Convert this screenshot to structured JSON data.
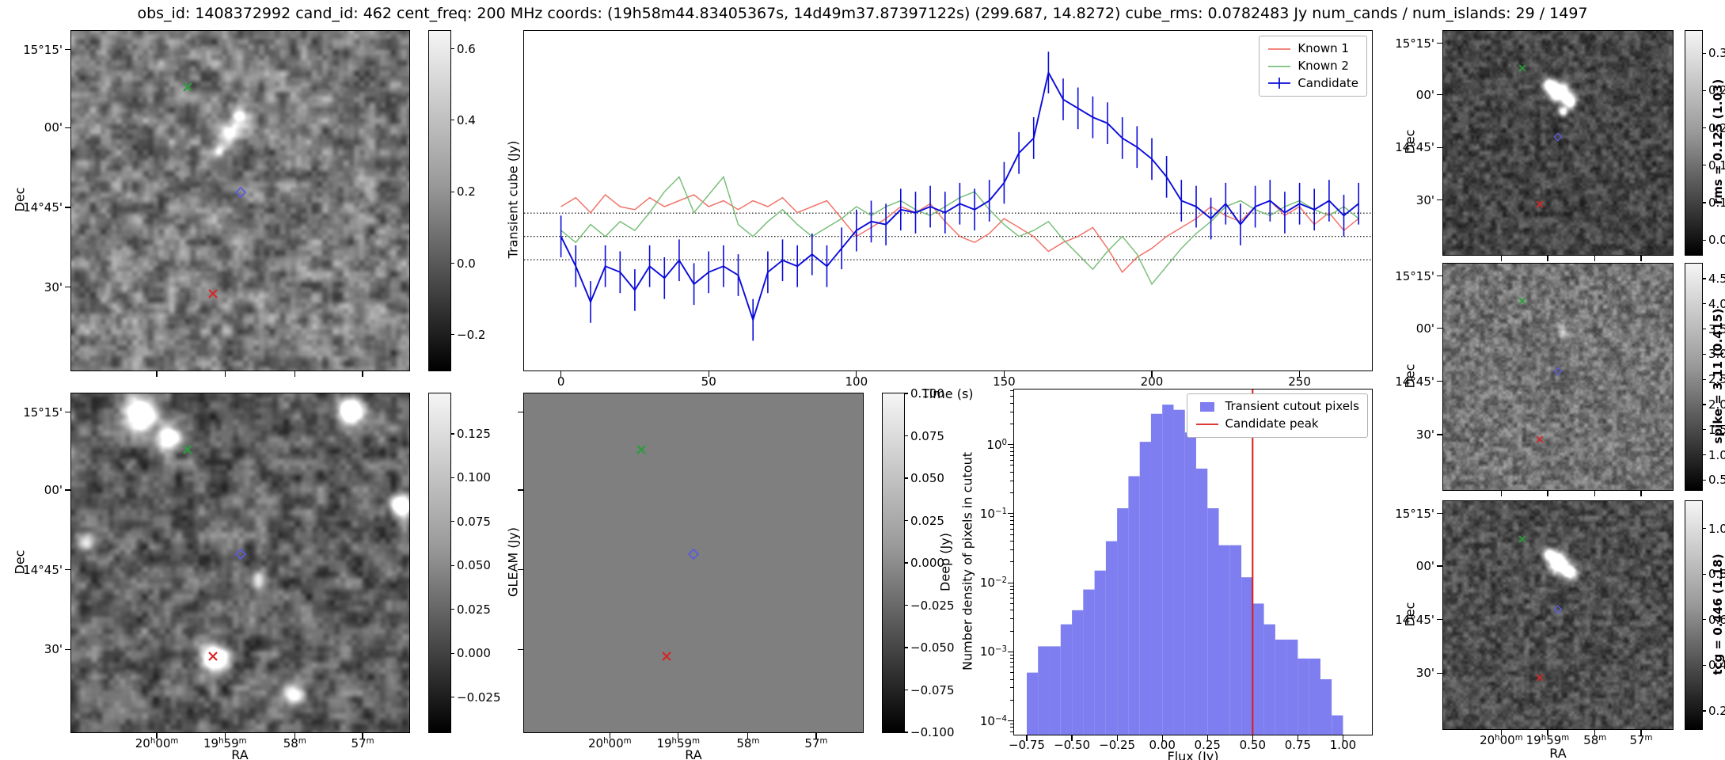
{
  "title": "obs_id: 1408372992 cand_id: 462 cent_freq: 200 MHz coords: (19h58m44.83405367s, 14d49m37.87397122s) (299.687, 14.8272) cube_rms: 0.0782483 Jy num_cands / num_islands: 29 / 1497",
  "axes": {
    "dec_label": "Dec",
    "ra_label": "RA",
    "dec_ticks": [
      {
        "label": "15°15'",
        "f": 0.055
      },
      {
        "label": "00'",
        "f": 0.285
      },
      {
        "label": "14°45'",
        "f": 0.52
      },
      {
        "label": "30'",
        "f": 0.755
      }
    ],
    "ra_ticks": [
      {
        "label": "20h00m",
        "f": 0.253
      },
      {
        "label": "19h59m",
        "f": 0.455
      },
      {
        "label": "58m",
        "f": 0.661
      },
      {
        "label": "57m",
        "f": 0.862
      }
    ]
  },
  "markers": {
    "green_x": {
      "fx": 0.345,
      "fy": 0.165
    },
    "red_x": {
      "fx": 0.42,
      "fy": 0.775
    },
    "candidate": {
      "fx": 0.5,
      "fy": 0.475
    },
    "green_color": "#2a9d3c",
    "red_color": "#d62728",
    "candidate_color": "#5b5bdc"
  },
  "colorbars": {
    "transient": {
      "label": "Transient cube (Jy)",
      "min": -0.3,
      "max": 0.65,
      "decimals": 1,
      "ticks": [
        0.6,
        0.4,
        0.2,
        0.0,
        -0.2
      ]
    },
    "gleam": {
      "label": "GLEAM (Jy)",
      "min": -0.045,
      "max": 0.148,
      "decimals": 3,
      "ticks": [
        0.125,
        0.1,
        0.075,
        0.05,
        0.025,
        0.0,
        -0.025
      ]
    },
    "deep": {
      "label": "Deep (Jy)",
      "min": -0.1,
      "max": 0.1,
      "decimals": 3,
      "ticks": [
        0.1,
        0.075,
        0.05,
        0.025,
        0.0,
        -0.025,
        -0.05,
        -0.075,
        -0.1
      ]
    },
    "rms": {
      "label": "rms = 0.125 (1.03)",
      "min": 0.03,
      "max": 0.33,
      "decimals": 2,
      "ticks": [
        0.3,
        0.25,
        0.2,
        0.15,
        0.1,
        0.05
      ]
    },
    "spike": {
      "label": "spike = 3.11 (0.415)",
      "min": 0.3,
      "max": 4.8,
      "decimals": 1,
      "ticks": [
        4.5,
        4.0,
        3.5,
        3.0,
        2.5,
        2.0,
        1.5,
        1.0,
        0.5
      ]
    },
    "tcg": {
      "label": "tcg = 0.446 (1.18)",
      "min": 0.12,
      "max": 1.12,
      "decimals": 1,
      "ticks": [
        1.0,
        0.8,
        0.6,
        0.4,
        0.2
      ]
    }
  },
  "chart_data": [
    {
      "type": "line",
      "name": "candidate-lightcurve",
      "xlabel": "Time (s)",
      "ylabel": "",
      "xlim": [
        -12.5,
        274.5
      ],
      "ylim": [
        -0.45,
        0.69
      ],
      "xticks": [
        0,
        50,
        100,
        150,
        200,
        250
      ],
      "hlines": [
        0.0782,
        0,
        -0.0782
      ],
      "legend_position": "top-right",
      "x": [
        0,
        5,
        10,
        15,
        20,
        25,
        30,
        35,
        40,
        45,
        50,
        55,
        60,
        65,
        70,
        75,
        80,
        85,
        90,
        95,
        100,
        105,
        110,
        115,
        120,
        125,
        130,
        135,
        140,
        145,
        150,
        155,
        160,
        165,
        170,
        175,
        180,
        185,
        190,
        195,
        200,
        205,
        210,
        215,
        220,
        225,
        230,
        235,
        240,
        245,
        250,
        255,
        260,
        265,
        270
      ],
      "series": [
        {
          "name": "Known 1",
          "color": "#f0766b",
          "values": [
            0.1,
            0.13,
            0.08,
            0.14,
            0.1,
            0.09,
            0.13,
            0.1,
            0.12,
            0.14,
            0.1,
            0.12,
            0.09,
            0.12,
            0.1,
            0.13,
            0.08,
            0.1,
            0.12,
            0.06,
            0.0,
            0.03,
            0.06,
            0.1,
            0.08,
            0.11,
            0.05,
            0.0,
            -0.02,
            0.01,
            0.06,
            0.03,
            0.0,
            -0.05,
            -0.02,
            0.0,
            0.03,
            -0.04,
            -0.12,
            -0.07,
            -0.04,
            0.0,
            0.03,
            0.06,
            0.1,
            0.07,
            0.05,
            0.1,
            0.12,
            0.07,
            0.1,
            0.04,
            0.08,
            0.02,
            0.06
          ]
        },
        {
          "name": "Known 2",
          "color": "#7abf7a",
          "values": [
            0.02,
            -0.02,
            0.04,
            0.0,
            0.05,
            0.02,
            0.08,
            0.15,
            0.2,
            0.08,
            0.14,
            0.2,
            0.04,
            0.0,
            0.05,
            0.09,
            0.04,
            0.0,
            0.03,
            0.06,
            0.1,
            0.07,
            0.1,
            0.12,
            0.09,
            0.07,
            0.1,
            0.13,
            0.15,
            0.09,
            0.04,
            0.0,
            0.02,
            0.05,
            -0.01,
            -0.06,
            -0.11,
            -0.05,
            0.0,
            -0.06,
            -0.16,
            -0.1,
            -0.04,
            0.01,
            0.05,
            0.1,
            0.12,
            0.09,
            0.07,
            0.1,
            0.12,
            0.09,
            0.07,
            0.1,
            0.06
          ]
        },
        {
          "name": "Candidate",
          "color": "#0b0bdb",
          "yerr": 0.07,
          "values": [
            0.0,
            -0.1,
            -0.22,
            -0.1,
            -0.12,
            -0.18,
            -0.1,
            -0.14,
            -0.08,
            -0.16,
            -0.12,
            -0.1,
            -0.13,
            -0.28,
            -0.12,
            -0.08,
            -0.1,
            -0.06,
            -0.1,
            -0.04,
            0.02,
            0.05,
            0.04,
            0.09,
            0.08,
            0.1,
            0.08,
            0.11,
            0.09,
            0.12,
            0.18,
            0.28,
            0.33,
            0.55,
            0.46,
            0.43,
            0.4,
            0.38,
            0.33,
            0.3,
            0.26,
            0.2,
            0.12,
            0.1,
            0.06,
            0.11,
            0.04,
            0.1,
            0.12,
            0.08,
            0.11,
            0.09,
            0.12,
            0.07,
            0.11
          ]
        }
      ]
    },
    {
      "type": "bar",
      "name": "flux-histogram",
      "xlabel": "Flux (Jy)",
      "ylabel": "Number density of pixels in cutout",
      "xlim": [
        -0.82,
        1.16
      ],
      "ylog": true,
      "ylim": [
        6.3e-05,
        6.3
      ],
      "xticks": [
        -0.75,
        -0.5,
        -0.25,
        0.0,
        0.25,
        0.5,
        0.75,
        1.0
      ],
      "yticks_exp": [
        0,
        -1,
        -2,
        -3,
        -4
      ],
      "bar_color": "#7e7ef0",
      "bin_width": 0.0625,
      "bin_left_edges": [
        -0.75,
        -0.6875,
        -0.625,
        -0.5625,
        -0.5,
        -0.4375,
        -0.375,
        -0.3125,
        -0.25,
        -0.1875,
        -0.125,
        -0.0625,
        0,
        0.0625,
        0.125,
        0.1875,
        0.25,
        0.3125,
        0.375,
        0.4375,
        0.5,
        0.5625,
        0.625,
        0.6875,
        0.75,
        0.8125,
        0.875,
        0.9375
      ],
      "values": [
        0.0005,
        0.0012,
        0.0012,
        0.0025,
        0.004,
        0.008,
        0.015,
        0.04,
        0.12,
        0.35,
        1.1,
        2.8,
        3.8,
        3.2,
        1.5,
        0.45,
        0.12,
        0.035,
        0.035,
        0.012,
        0.005,
        0.0025,
        0.0015,
        0.0015,
        0.0008,
        0.0008,
        0.0004,
        0.00012
      ],
      "vline": {
        "x": 0.5,
        "color": "#dc1c1c",
        "label": "Candidate peak"
      },
      "legend": [
        "Transient cutout pixels",
        "Candidate peak"
      ]
    }
  ]
}
